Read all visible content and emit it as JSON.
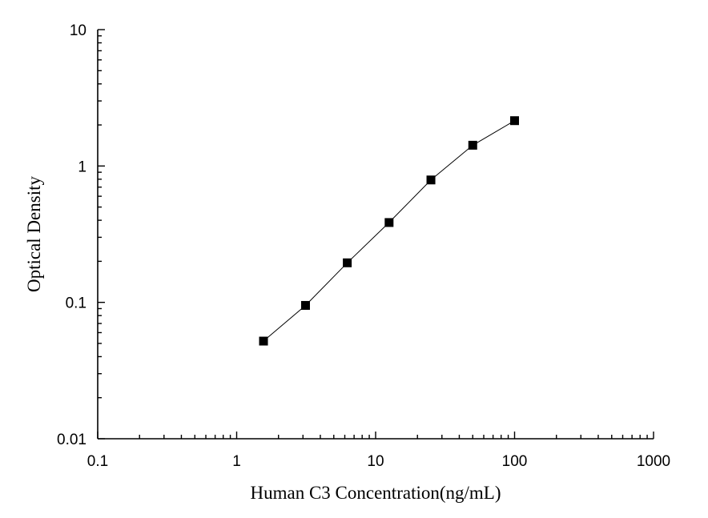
{
  "chart_data": {
    "type": "scatter",
    "xlabel": "Human C3 Concentration(ng/mL)",
    "ylabel": "Optical Density",
    "xscale": "log",
    "yscale": "log",
    "xlim": [
      0.1,
      1000
    ],
    "ylim": [
      0.01,
      10
    ],
    "xticks": [
      0.1,
      1,
      10,
      100,
      1000
    ],
    "xtick_labels": [
      "0.1",
      "1",
      "10",
      "100",
      "1000"
    ],
    "yticks": [
      0.01,
      0.1,
      1,
      10
    ],
    "ytick_labels": [
      "0.01",
      "0.1",
      "1",
      "10"
    ],
    "grid": false,
    "marker": "square",
    "line_color": "#000000",
    "marker_color": "#000000",
    "series": [
      {
        "x": [
          1.56,
          3.13,
          6.25,
          12.5,
          25,
          50,
          100
        ],
        "y": [
          0.052,
          0.095,
          0.195,
          0.385,
          0.79,
          1.42,
          2.15
        ]
      }
    ]
  }
}
